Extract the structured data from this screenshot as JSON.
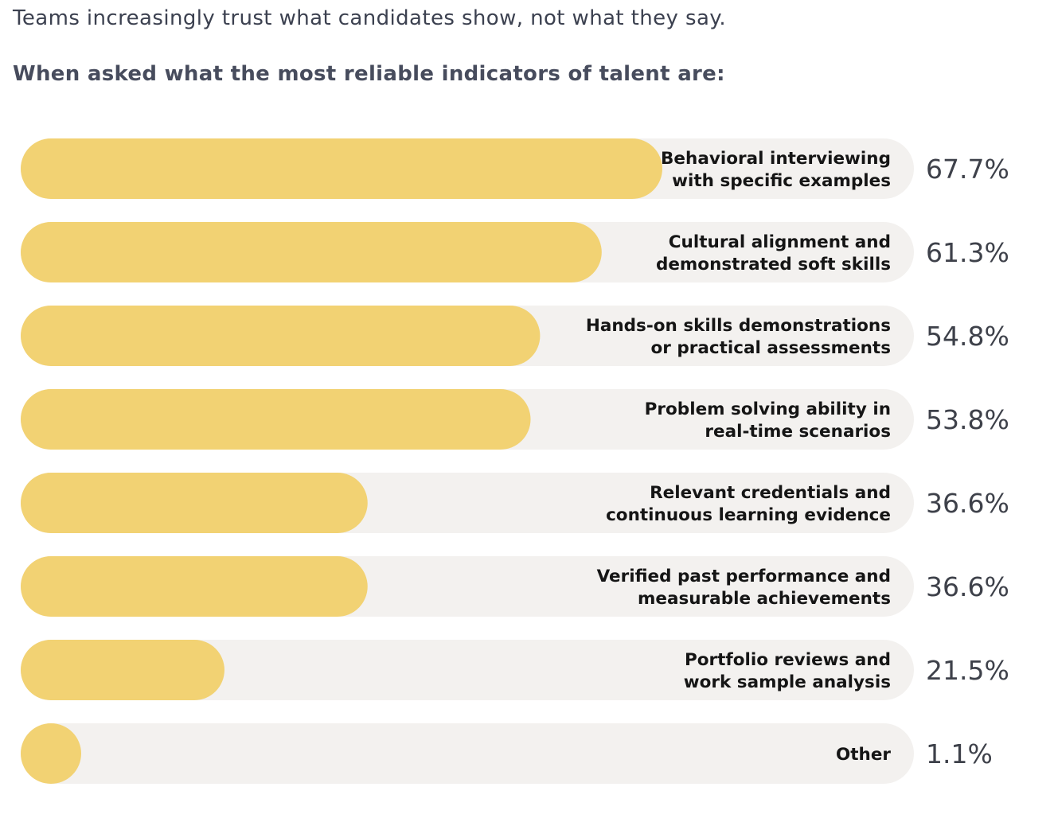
{
  "intro": "Teams increasingly trust what candidates show, not what they say.",
  "subheading": "When asked what the most reliable indicators of talent are:",
  "colors": {
    "bar_fill": "#f2d273",
    "track": "#f3f1ef",
    "label_text": "#151515",
    "value_text": "#3e414a"
  },
  "chart_data": {
    "type": "bar",
    "orientation": "horizontal",
    "unit": "%",
    "xlim": [
      0,
      100
    ],
    "grid": false,
    "categories": [
      "Behavioral interviewing with specific examples",
      "Cultural alignment and demonstrated soft skills",
      "Hands-on skills demonstrations or practical assessments",
      "Problem solving ability in real-time scenarios",
      "Relevant credentials and continuous learning evidence",
      "Verified past performance and measurable achievements",
      "Portfolio reviews and work sample analysis",
      "Other"
    ],
    "label_lines": [
      [
        "Behavioral interviewing",
        "with specific examples"
      ],
      [
        "Cultural alignment and",
        "demonstrated soft skills"
      ],
      [
        "Hands-on skills demonstrations",
        "or practical assessments"
      ],
      [
        "Problem solving ability in",
        "real-time scenarios"
      ],
      [
        "Relevant credentials and",
        "continuous learning evidence"
      ],
      [
        "Verified past performance and",
        "measurable achievements"
      ],
      [
        "Portfolio reviews and",
        "work sample analysis"
      ],
      [
        "Other"
      ]
    ],
    "values": [
      67.7,
      61.3,
      54.8,
      53.8,
      36.6,
      36.6,
      21.5,
      1.1
    ],
    "value_labels": [
      "67.7%",
      "61.3%",
      "54.8%",
      "53.8%",
      "36.6%",
      "36.6%",
      "21.5%",
      "1.1%"
    ]
  }
}
